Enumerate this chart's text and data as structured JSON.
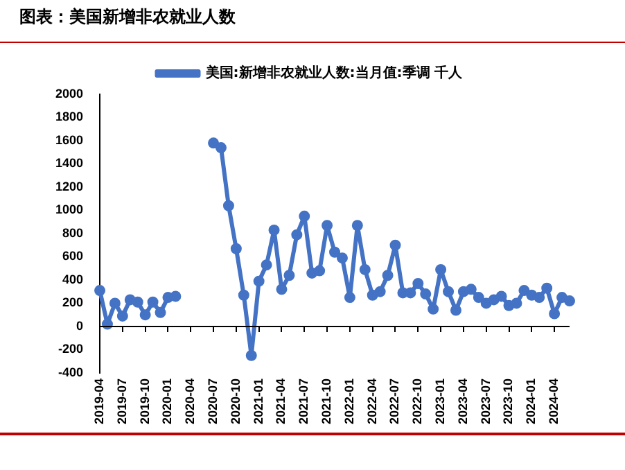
{
  "chart_data": {
    "type": "line",
    "title": "图表：美国新增非农就业人数",
    "categories": [
      "2019-04",
      null,
      null,
      "2019-07",
      null,
      null,
      "2019-10",
      null,
      null,
      "2020-01",
      null,
      null,
      "2020-04",
      null,
      null,
      "2020-07",
      null,
      null,
      "2020-10",
      null,
      null,
      "2021-01",
      null,
      null,
      "2021-04",
      null,
      null,
      "2021-07",
      null,
      null,
      "2021-10",
      null,
      null,
      "2022-01",
      null,
      null,
      "2022-04",
      null,
      null,
      "2022-07",
      null,
      null,
      "2022-10",
      null,
      null,
      "2023-01",
      null,
      null,
      "2023-04",
      null,
      null,
      "2023-07",
      null,
      null,
      "2023-10",
      null,
      null,
      "2024-01",
      null,
      null,
      "2024-04",
      null,
      null
    ],
    "series": [
      {
        "name": "美国:新增非农就业人数:当月值:季调 千人",
        "color": "#4472c4",
        "values": [
          310,
          20,
          200,
          90,
          230,
          210,
          100,
          210,
          120,
          250,
          260,
          null,
          null,
          null,
          null,
          1580,
          1540,
          1040,
          670,
          270,
          -250,
          390,
          530,
          830,
          320,
          440,
          790,
          950,
          460,
          480,
          870,
          640,
          590,
          250,
          870,
          490,
          270,
          300,
          440,
          700,
          290,
          290,
          370,
          280,
          150,
          490,
          300,
          140,
          300,
          320,
          250,
          200,
          230,
          260,
          180,
          200,
          310,
          270,
          250,
          330,
          110,
          250,
          220
        ]
      }
    ],
    "ylim": [
      -400,
      2000
    ],
    "yticks": [
      -400,
      -200,
      0,
      200,
      400,
      600,
      800,
      1000,
      1200,
      1400,
      1600,
      1800,
      2000
    ],
    "ref_lines": [
      {
        "axis": "y",
        "value": 0,
        "color": "#000000",
        "line_style": "solid"
      }
    ],
    "grid": false,
    "legend": "top",
    "marker": "circle",
    "line_style": "solid"
  }
}
